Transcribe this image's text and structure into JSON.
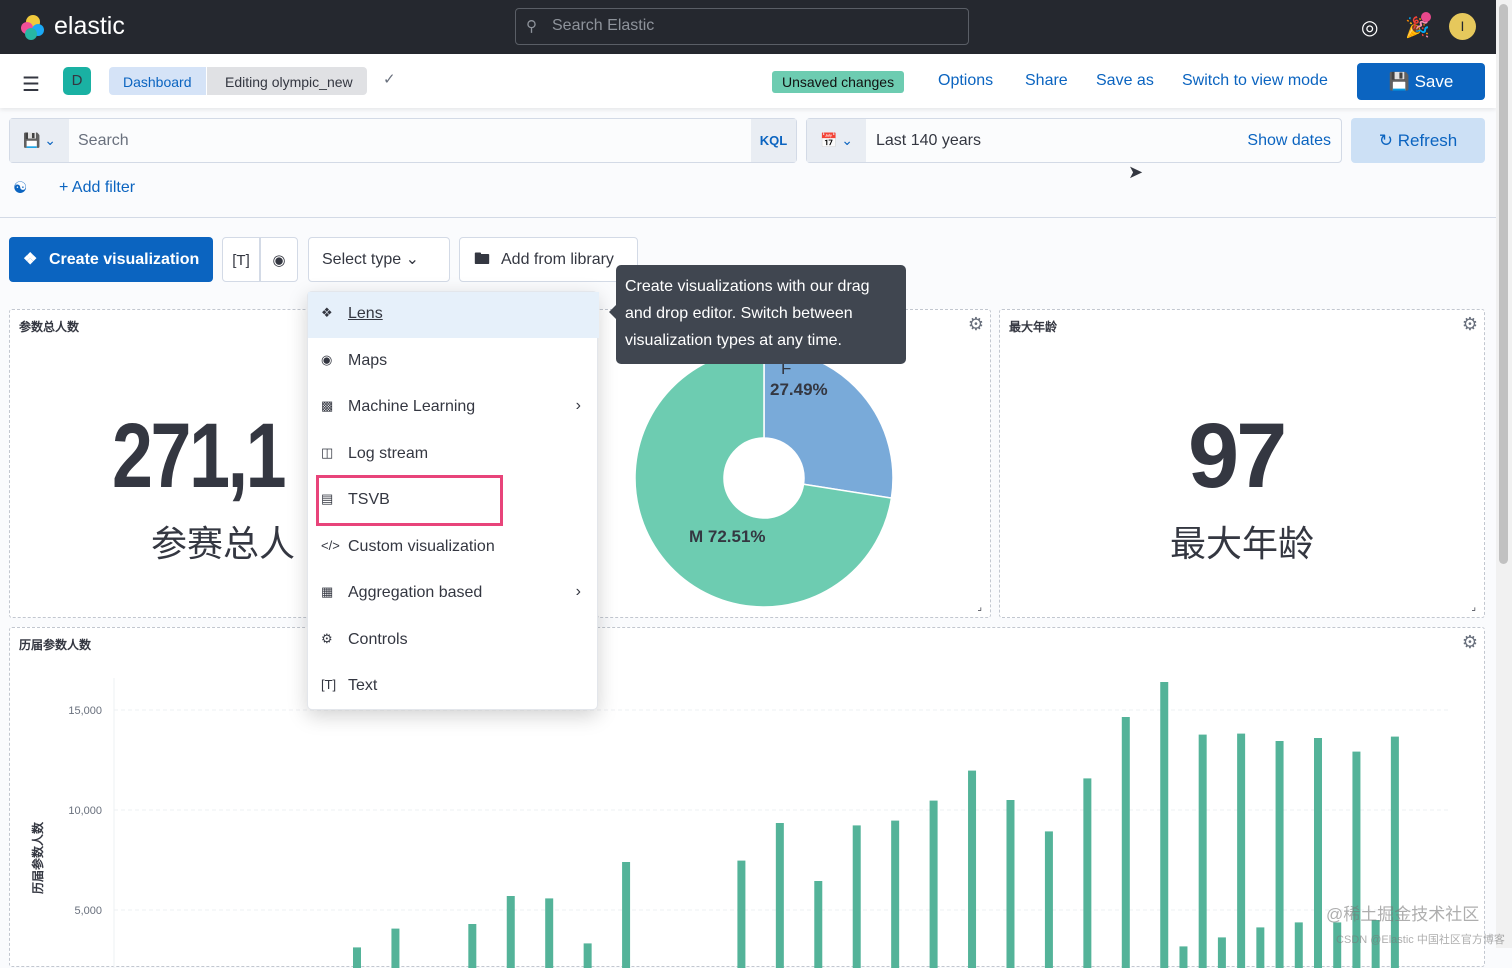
{
  "header": {
    "brand": "elastic",
    "search_placeholder": "Search Elastic",
    "avatar_initial": "I"
  },
  "nav": {
    "space_initial": "D",
    "breadcrumbs": [
      "Dashboard",
      "Editing olympic_new"
    ],
    "unsaved_badge": "Unsaved changes",
    "links": [
      "Options",
      "Share",
      "Save as",
      "Switch to view mode"
    ],
    "save_label": "Save"
  },
  "query": {
    "placeholder": "Search",
    "language": "KQL",
    "time_range": "Last 140 years",
    "show_dates": "Show dates",
    "refresh": "Refresh",
    "add_filter": "+ Add filter"
  },
  "toolbar": {
    "create_visualization": "Create visualization",
    "select_type": "Select type",
    "add_from_library": "Add from library"
  },
  "menu": {
    "items": [
      {
        "label": "Lens",
        "icon": "lens-icon"
      },
      {
        "label": "Maps",
        "icon": "maps-icon"
      },
      {
        "label": "Machine Learning",
        "icon": "ml-icon",
        "submenu": true
      },
      {
        "label": "Log stream",
        "icon": "log-icon"
      },
      {
        "label": "TSVB",
        "icon": "tsvb-icon"
      },
      {
        "label": "Custom visualization",
        "icon": "code-icon"
      },
      {
        "label": "Aggregation based",
        "icon": "aggregation-icon",
        "submenu": true
      },
      {
        "label": "Controls",
        "icon": "controls-icon"
      },
      {
        "label": "Text",
        "icon": "text-icon"
      }
    ]
  },
  "tooltip": "Create visualizations with our drag and drop editor. Switch between visualization types at any time.",
  "panels": {
    "p1": {
      "title": "参数总人数",
      "value": "271,1",
      "label": "参赛总人"
    },
    "p2": {
      "pie": {
        "slices": [
          {
            "label": "F",
            "value": 27.49,
            "color": "#79aad9"
          },
          {
            "label": "M",
            "value": 72.51,
            "color": "#6dccb1"
          }
        ],
        "f_label": "F",
        "f_pct": "27.49%",
        "m_label": "M 72.51%"
      }
    },
    "p3": {
      "title": "最大年龄",
      "value": "97",
      "label": "最大年龄"
    },
    "p4": {
      "title": "历届参数人数"
    }
  },
  "chart_data": {
    "type": "bar",
    "ylabel": "历届参数人数",
    "yticks": [
      "5,000",
      "10,000",
      "15,000"
    ],
    "color": "#54b399",
    "grid": true,
    "values": [
      3130,
      null,
      4070,
      null,
      null,
      null,
      4300,
      null,
      5700,
      null,
      5580,
      null,
      3330,
      null,
      7400,
      null,
      null,
      null,
      null,
      null,
      7470,
      null,
      9350,
      null,
      6450,
      null,
      9230,
      null,
      9470,
      null,
      10470,
      null,
      11970,
      null,
      10500,
      null,
      8930,
      null,
      11580,
      null,
      14650,
      null,
      16400,
      3180,
      13770,
      3630,
      13820,
      4130,
      13450,
      4380,
      13600,
      4380,
      12920,
      4500,
      13670
    ]
  },
  "watermark": [
    "@稀土掘金技术社区",
    "CSDN @Elastic 中国社区官方博客"
  ]
}
